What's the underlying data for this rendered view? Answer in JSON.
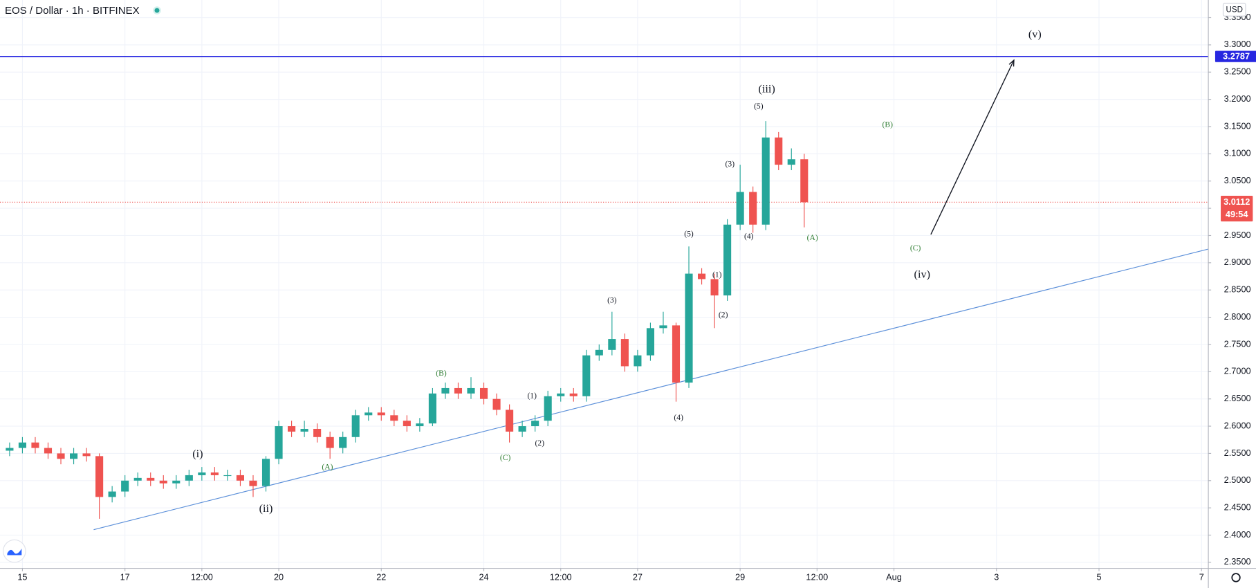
{
  "chart_data": {
    "type": "candlestick",
    "title": "EOS / Dollar · 1h · BITFINEX",
    "currency": "USD",
    "up_color": "#26a69a",
    "down_color": "#ef5350",
    "grid": true,
    "xlim": [
      14.5625,
      38.125
    ],
    "ylim": [
      2.3397,
      3.3824
    ],
    "xticks": [
      15,
      17,
      {
        "value": 18.5,
        "label": "12:00"
      },
      20,
      22,
      24,
      {
        "value": 25.5,
        "label": "12:00"
      },
      27,
      29,
      {
        "value": 30.5,
        "label": "12:00"
      },
      {
        "value": 32,
        "label": "Aug"
      },
      {
        "value": 34,
        "label": "3"
      },
      {
        "value": 36,
        "label": "5"
      },
      {
        "value": 38,
        "label": "7"
      }
    ],
    "yticks": [
      {
        "value": 2.35,
        "label": "2.3500"
      },
      {
        "value": 2.4,
        "label": "2.4000"
      },
      {
        "value": 2.45,
        "label": "2.4500"
      },
      {
        "value": 2.5,
        "label": "2.5000"
      },
      {
        "value": 2.55,
        "label": "2.5500"
      },
      {
        "value": 2.6,
        "label": "2.6000"
      },
      {
        "value": 2.65,
        "label": "2.6500"
      },
      {
        "value": 2.7,
        "label": "2.7000"
      },
      {
        "value": 2.75,
        "label": "2.7500"
      },
      {
        "value": 2.8,
        "label": "2.8000"
      },
      {
        "value": 2.85,
        "label": "2.8500"
      },
      {
        "value": 2.9,
        "label": "2.9000"
      },
      {
        "value": 2.95,
        "label": "2.9500"
      },
      {
        "value": 3.0,
        "label": "3.0000"
      },
      {
        "value": 3.05,
        "label": "3.0500"
      },
      {
        "value": 3.1,
        "label": "3.1000"
      },
      {
        "value": 3.15,
        "label": "3.1500"
      },
      {
        "value": 3.2,
        "label": "3.2000"
      },
      {
        "value": 3.25,
        "label": "3.2500"
      },
      {
        "value": 3.3,
        "label": "3.3000"
      },
      {
        "value": 3.35,
        "label": "3.3500"
      }
    ],
    "x": [
      14.75,
      15,
      15.25,
      15.5,
      15.75,
      16,
      16.25,
      16.5,
      16.75,
      17,
      17.25,
      17.5,
      17.75,
      18,
      18.25,
      18.5,
      18.75,
      19,
      19.25,
      19.5,
      19.75,
      20,
      20.25,
      20.5,
      20.75,
      21,
      21.25,
      21.5,
      21.75,
      22,
      22.25,
      22.5,
      22.75,
      23,
      23.25,
      23.5,
      23.75,
      24,
      24.25,
      24.5,
      24.75,
      25,
      25.25,
      25.5,
      25.75,
      26,
      26.25,
      26.5,
      26.75,
      27,
      27.25,
      27.5,
      27.75,
      28,
      28.25,
      28.5,
      28.75,
      29,
      29.25,
      29.5,
      29.75,
      30,
      30.25
    ],
    "open": [
      2.555,
      2.56,
      2.57,
      2.56,
      2.55,
      2.54,
      2.55,
      2.545,
      2.47,
      2.48,
      2.5,
      2.505,
      2.5,
      2.495,
      2.5,
      2.51,
      2.515,
      2.51,
      2.51,
      2.5,
      2.49,
      2.54,
      2.6,
      2.59,
      2.595,
      2.58,
      2.56,
      2.58,
      2.62,
      2.625,
      2.62,
      2.61,
      2.6,
      2.605,
      2.66,
      2.67,
      2.66,
      2.67,
      2.65,
      2.63,
      2.59,
      2.6,
      2.61,
      2.655,
      2.66,
      2.655,
      2.73,
      2.74,
      2.76,
      2.71,
      2.73,
      2.78,
      2.785,
      2.68,
      2.88,
      2.87,
      2.84,
      2.97,
      3.03,
      2.97,
      3.13,
      3.08,
      3.09
    ],
    "high": [
      2.57,
      2.58,
      2.58,
      2.57,
      2.56,
      2.56,
      2.56,
      2.55,
      2.49,
      2.51,
      2.515,
      2.515,
      2.51,
      2.51,
      2.52,
      2.525,
      2.525,
      2.52,
      2.52,
      2.51,
      2.545,
      2.61,
      2.61,
      2.61,
      2.605,
      2.59,
      2.59,
      2.63,
      2.635,
      2.635,
      2.63,
      2.62,
      2.615,
      2.67,
      2.68,
      2.68,
      2.69,
      2.68,
      2.66,
      2.64,
      2.61,
      2.62,
      2.665,
      2.67,
      2.67,
      2.74,
      2.75,
      2.81,
      2.77,
      2.74,
      2.79,
      2.81,
      2.79,
      2.93,
      2.89,
      2.88,
      2.98,
      3.08,
      3.04,
      3.16,
      3.14,
      3.11,
      3.1
    ],
    "low": [
      2.545,
      2.55,
      2.55,
      2.54,
      2.53,
      2.53,
      2.535,
      2.43,
      2.46,
      2.47,
      2.49,
      2.49,
      2.485,
      2.485,
      2.49,
      2.5,
      2.5,
      2.5,
      2.49,
      2.47,
      2.48,
      2.53,
      2.58,
      2.58,
      2.57,
      2.54,
      2.55,
      2.57,
      2.61,
      2.61,
      2.6,
      2.59,
      2.59,
      2.6,
      2.65,
      2.65,
      2.65,
      2.64,
      2.62,
      2.57,
      2.58,
      2.59,
      2.6,
      2.645,
      2.645,
      2.645,
      2.72,
      2.73,
      2.7,
      2.7,
      2.72,
      2.77,
      2.645,
      2.67,
      2.86,
      2.78,
      2.83,
      2.96,
      2.955,
      2.96,
      3.07,
      3.07,
      2.965
    ],
    "close": [
      2.56,
      2.57,
      2.56,
      2.55,
      2.54,
      2.55,
      2.545,
      2.47,
      2.48,
      2.5,
      2.505,
      2.5,
      2.495,
      2.5,
      2.51,
      2.515,
      2.51,
      2.51,
      2.5,
      2.49,
      2.54,
      2.6,
      2.59,
      2.595,
      2.58,
      2.56,
      2.58,
      2.62,
      2.625,
      2.62,
      2.61,
      2.6,
      2.605,
      2.66,
      2.67,
      2.66,
      2.67,
      2.65,
      2.63,
      2.59,
      2.6,
      2.61,
      2.655,
      2.66,
      2.655,
      2.73,
      2.74,
      2.76,
      2.71,
      2.73,
      2.78,
      2.785,
      2.68,
      2.88,
      2.87,
      2.84,
      2.97,
      3.03,
      2.97,
      3.13,
      3.08,
      3.09,
      3.0112
    ],
    "target_line": {
      "value": 3.2787,
      "color": "#2727e0"
    },
    "last_price": {
      "value": 3.0112,
      "countdown": "49:54",
      "color": "#ef5350"
    },
    "trendline": {
      "x": [
        16.39,
        38.125
      ],
      "y": [
        2.41,
        2.925
      ],
      "color": "#5b8fd9"
    },
    "arrow": {
      "x": [
        32.72,
        34.34
      ],
      "y": [
        2.952,
        3.272
      ],
      "color": "#131722"
    },
    "wave_labels": [
      {
        "text": "(i)",
        "x": 18.42,
        "y": 2.5474,
        "color": "#131722",
        "size": 14
      },
      {
        "text": "(ii)",
        "x": 19.75,
        "y": 2.4472,
        "color": "#131722",
        "size": 14
      },
      {
        "text": "(A)",
        "x": 20.95,
        "y": 2.5238,
        "color": "#2e7d32",
        "size": 10
      },
      {
        "text": "(B)",
        "x": 23.17,
        "y": 2.6961,
        "color": "#2e7d32",
        "size": 10
      },
      {
        "text": "(C)",
        "x": 24.42,
        "y": 2.5414,
        "color": "#2e7d32",
        "size": 10
      },
      {
        "text": "(1)",
        "x": 24.94,
        "y": 2.6549,
        "color": "#131722",
        "size": 10
      },
      {
        "text": "(2)",
        "x": 25.09,
        "y": 2.568,
        "color": "#131722",
        "size": 10
      },
      {
        "text": "(3)",
        "x": 26.5,
        "y": 2.8301,
        "color": "#131722",
        "size": 10
      },
      {
        "text": "(4)",
        "x": 27.8,
        "y": 2.6151,
        "color": "#131722",
        "size": 10
      },
      {
        "text": "(5)",
        "x": 28.0,
        "y": 2.9523,
        "color": "#131722",
        "size": 10
      },
      {
        "text": "(1)",
        "x": 28.55,
        "y": 2.8772,
        "color": "#131722",
        "size": 10
      },
      {
        "text": "(2)",
        "x": 28.67,
        "y": 2.8036,
        "color": "#131722",
        "size": 10
      },
      {
        "text": "(3)",
        "x": 28.8,
        "y": 3.0805,
        "color": "#131722",
        "size": 10
      },
      {
        "text": "(4)",
        "x": 29.17,
        "y": 2.9479,
        "color": "#131722",
        "size": 10
      },
      {
        "text": "(5)",
        "x": 29.36,
        "y": 3.1865,
        "color": "#131722",
        "size": 10
      },
      {
        "text": "(iii)",
        "x": 29.52,
        "y": 3.2175,
        "color": "#131722",
        "size": 14
      },
      {
        "text": "(A)",
        "x": 30.41,
        "y": 2.945,
        "color": "#2e7d32",
        "size": 10
      },
      {
        "text": "(B)",
        "x": 31.875,
        "y": 3.1527,
        "color": "#2e7d32",
        "size": 10
      },
      {
        "text": "(C)",
        "x": 32.42,
        "y": 2.9259,
        "color": "#2e7d32",
        "size": 10
      },
      {
        "text": "(iv)",
        "x": 32.55,
        "y": 2.8772,
        "color": "#131722",
        "size": 14
      },
      {
        "text": "(v)",
        "x": 34.75,
        "y": 3.3176,
        "color": "#131722",
        "size": 14
      }
    ]
  }
}
